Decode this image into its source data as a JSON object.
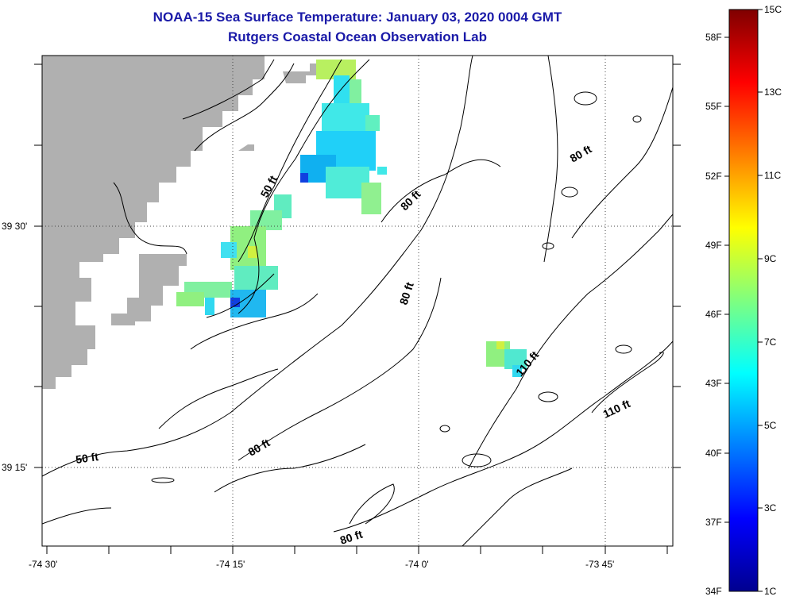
{
  "title": "NOAA-15 Sea Surface Temperature:  January 03, 2020 0004 GMT",
  "subtitle": "Rutgers Coastal Ocean Observation Lab",
  "axes": {
    "x_ticks": [
      "-74 30'",
      "-74 15'",
      "-74 0'",
      "-73 45'"
    ],
    "y_ticks": [
      "39 30'",
      "39 15'"
    ]
  },
  "contour_labels": [
    "50 ft",
    "50 ft",
    "80 ft",
    "80 ft",
    "80 ft",
    "80 ft",
    "80 ft",
    "110 ft",
    "110 ft"
  ],
  "colorbar": {
    "colors": {
      "min": "#00008f",
      "max": "#7f0000"
    },
    "celsius": [
      "15C",
      "13C",
      "11C",
      "9C",
      "7C",
      "5C",
      "3C",
      "1C"
    ],
    "fahrenheit": [
      "58F",
      "55F",
      "52F",
      "49F",
      "46F",
      "43F",
      "40F",
      "37F",
      "34F"
    ]
  },
  "colors": {
    "land": "#b0b0b0",
    "title": "#1a1aa8",
    "contour": "#000000"
  }
}
